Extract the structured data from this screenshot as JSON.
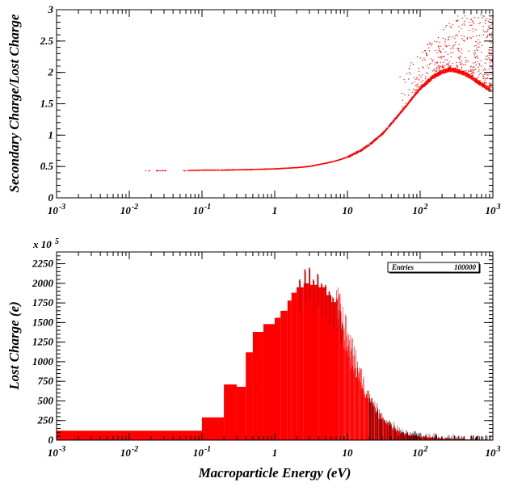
{
  "chart_data": [
    {
      "type": "scatter",
      "title": "",
      "xlabel": "",
      "ylabel": "Secondary Charge/Lost Charge",
      "xscale": "log",
      "xlim": [
        0.001,
        1000
      ],
      "ylim": [
        0,
        3
      ],
      "x_ticks": [
        {
          "base": "10",
          "exp": "-3"
        },
        {
          "base": "10",
          "exp": "-2"
        },
        {
          "base": "10",
          "exp": "-1"
        },
        {
          "base": "1",
          "exp": ""
        },
        {
          "base": "10",
          "exp": ""
        },
        {
          "base": "10",
          "exp": "2"
        },
        {
          "base": "10",
          "exp": "3"
        }
      ],
      "y_ticks": [
        "0",
        "0.5",
        "1",
        "1.5",
        "2",
        "2.5",
        "3"
      ],
      "grid": false,
      "marker_color": "#ff0000",
      "trend": {
        "x": [
          0.015,
          0.03,
          0.06,
          0.1,
          0.2,
          0.5,
          1,
          2,
          3,
          5,
          7,
          10,
          15,
          20,
          30,
          50,
          70,
          100,
          150,
          200,
          250,
          300,
          400,
          500,
          600,
          700,
          800,
          900
        ],
        "y": [
          0.44,
          0.44,
          0.44,
          0.45,
          0.45,
          0.46,
          0.47,
          0.49,
          0.51,
          0.56,
          0.6,
          0.66,
          0.76,
          0.86,
          1.03,
          1.33,
          1.54,
          1.76,
          1.94,
          2.02,
          2.05,
          2.04,
          1.99,
          1.93,
          1.86,
          1.81,
          1.77,
          1.73
        ]
      },
      "gaps": [
        [
          0.019,
          0.023
        ],
        [
          0.032,
          0.055
        ]
      ],
      "scatter_spread": {
        "x_range": [
          50,
          1000
        ],
        "y_max": [
          2.0,
          2.95
        ]
      }
    },
    {
      "type": "histogram",
      "title": "",
      "xlabel": "Macroparticle Energy (eV)",
      "ylabel": "Lost Charge (e)",
      "y_multiplier": {
        "base": "x 10",
        "exp": "5"
      },
      "xscale": "log",
      "xlim": [
        0.001,
        1000
      ],
      "ylim": [
        0,
        2400
      ],
      "x_ticks": [
        {
          "base": "10",
          "exp": "-3"
        },
        {
          "base": "10",
          "exp": "-2"
        },
        {
          "base": "10",
          "exp": "-1"
        },
        {
          "base": "1",
          "exp": ""
        },
        {
          "base": "10",
          "exp": ""
        },
        {
          "base": "10",
          "exp": "2"
        },
        {
          "base": "10",
          "exp": "3"
        }
      ],
      "y_ticks": [
        "0",
        "250",
        "500",
        "750",
        "1000",
        "1250",
        "1500",
        "1750",
        "2000",
        "2250"
      ],
      "grid": false,
      "fill_color": "#ff0000",
      "stats_box": {
        "label": "Entries",
        "value": "100000",
        "position": "top-right"
      },
      "bins": {
        "edges": [
          0.001,
          0.1,
          0.2,
          0.3,
          0.4,
          0.5,
          0.7,
          1.0,
          1.2,
          1.5,
          1.7,
          2.0,
          2.5,
          3.0,
          4.0,
          5.0,
          6.0,
          7.0
        ],
        "values": [
          120,
          290,
          710,
          680,
          1120,
          1380,
          1480,
          1560,
          1650,
          1780,
          1880,
          1950,
          2000,
          1980,
          1950,
          1850,
          1760
        ]
      },
      "tail": {
        "x": [
          7,
          8,
          10,
          12,
          15,
          20,
          25,
          30,
          40,
          50,
          70,
          100,
          150,
          200,
          300,
          500,
          700,
          1000
        ],
        "y": [
          1700,
          1550,
          1260,
          1050,
          800,
          520,
          380,
          260,
          170,
          110,
          70,
          45,
          30,
          20,
          15,
          8,
          5,
          3
        ]
      },
      "spikes": [
        {
          "x": 2.2,
          "y": 2050
        },
        {
          "x": 2.6,
          "y": 2180
        },
        {
          "x": 3.0,
          "y": 2200
        },
        {
          "x": 3.4,
          "y": 2050
        },
        {
          "x": 3.9,
          "y": 2120
        },
        {
          "x": 4.4,
          "y": 2000
        },
        {
          "x": 5.0,
          "y": 1980
        },
        {
          "x": 5.6,
          "y": 1900
        },
        {
          "x": 6.3,
          "y": 1820
        },
        {
          "x": 7.1,
          "y": 1800
        },
        {
          "x": 8.0,
          "y": 1650
        }
      ]
    }
  ]
}
